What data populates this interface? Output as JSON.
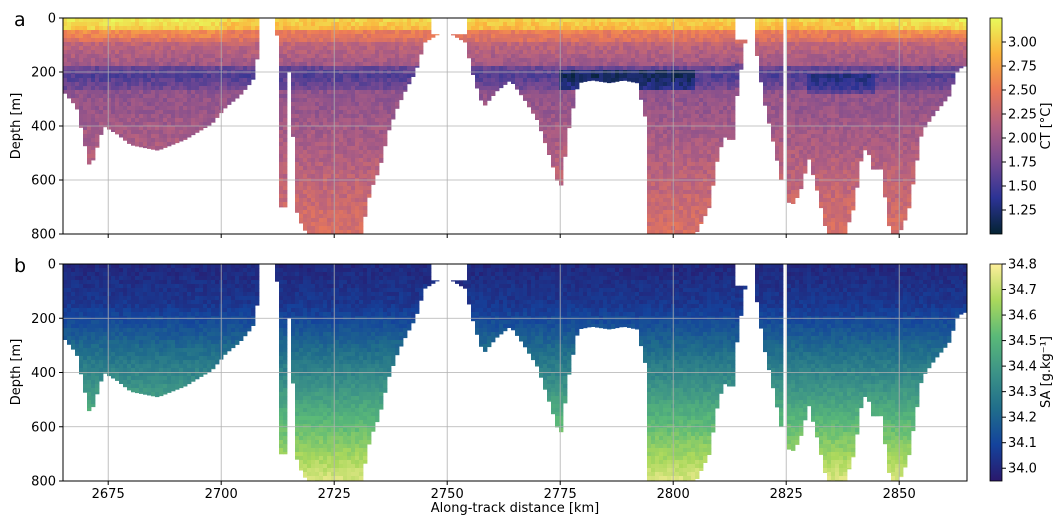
{
  "chart_data": [
    {
      "panel": "a",
      "type": "heatmap",
      "variable": "CT",
      "xlabel": "",
      "ylabel": "Depth [m]",
      "colorbar_label": "CT [°C]",
      "xlim": [
        2665,
        2865
      ],
      "ylim": [
        800,
        0
      ],
      "x_ticks": [
        2675,
        2700,
        2725,
        2750,
        2775,
        2800,
        2825,
        2850
      ],
      "y_ticks": [
        0,
        200,
        400,
        600,
        800
      ],
      "colorbar_ticks": [
        "1.25",
        "1.50",
        "1.75",
        "2.00",
        "2.25",
        "2.50",
        "2.75",
        "3.00"
      ],
      "color_range": [
        1.0,
        3.25
      ],
      "colormap": "thermal",
      "grid": true
    },
    {
      "panel": "b",
      "type": "heatmap",
      "variable": "SA",
      "xlabel": "Along-track distance [km]",
      "ylabel": "Depth [m]",
      "colorbar_label": "SA [g.kg⁻¹]",
      "xlim": [
        2665,
        2865
      ],
      "ylim": [
        800,
        0
      ],
      "x_ticks": [
        2675,
        2700,
        2725,
        2750,
        2775,
        2800,
        2825,
        2850
      ],
      "y_ticks": [
        0,
        200,
        400,
        600,
        800
      ],
      "colorbar_ticks": [
        "34.0",
        "34.1",
        "34.2",
        "34.3",
        "34.4",
        "34.5",
        "34.6",
        "34.7",
        "34.8"
      ],
      "color_range": [
        33.95,
        34.8
      ],
      "colormap": "haline",
      "grid": true
    }
  ],
  "profile_depth_m": [
    [
      2665,
      270
    ],
    [
      2668,
      330
    ],
    [
      2671,
      560
    ],
    [
      2674,
      400
    ],
    [
      2677,
      430
    ],
    [
      2680,
      470
    ],
    [
      2683,
      480
    ],
    [
      2686,
      490
    ],
    [
      2689,
      470
    ],
    [
      2692,
      450
    ],
    [
      2695,
      420
    ],
    [
      2698,
      390
    ],
    [
      2701,
      330
    ],
    [
      2704,
      290
    ],
    [
      2707,
      230
    ],
    [
      2709,
      60
    ],
    [
      2711,
      10
    ],
    [
      2713,
      90
    ],
    [
      2715,
      200
    ],
    [
      2717,
      740
    ],
    [
      2719,
      800
    ],
    [
      2722,
      800
    ],
    [
      2725,
      800
    ],
    [
      2728,
      800
    ],
    [
      2731,
      800
    ],
    [
      2733,
      640
    ],
    [
      2735,
      560
    ],
    [
      2737,
      420
    ],
    [
      2739,
      330
    ],
    [
      2741,
      260
    ],
    [
      2743,
      200
    ],
    [
      2745,
      90
    ],
    [
      2748,
      60
    ],
    [
      2751,
      60
    ],
    [
      2754,
      90
    ],
    [
      2756,
      230
    ],
    [
      2758,
      330
    ],
    [
      2761,
      270
    ],
    [
      2764,
      230
    ],
    [
      2767,
      300
    ],
    [
      2770,
      380
    ],
    [
      2773,
      530
    ],
    [
      2775,
      640
    ],
    [
      2777,
      400
    ],
    [
      2779,
      240
    ],
    [
      2782,
      230
    ],
    [
      2786,
      240
    ],
    [
      2789,
      230
    ],
    [
      2792,
      240
    ],
    [
      2794,
      380
    ],
    [
      2796,
      800
    ],
    [
      2799,
      800
    ],
    [
      2802,
      800
    ],
    [
      2805,
      800
    ],
    [
      2808,
      700
    ],
    [
      2810,
      500
    ],
    [
      2812,
      420
    ],
    [
      2814,
      300
    ],
    [
      2816,
      80
    ],
    [
      2818,
      80
    ],
    [
      2820,
      300
    ],
    [
      2822,
      450
    ],
    [
      2824,
      610
    ],
    [
      2826,
      700
    ],
    [
      2828,
      650
    ],
    [
      2830,
      520
    ],
    [
      2832,
      650
    ],
    [
      2834,
      800
    ],
    [
      2836,
      800
    ],
    [
      2838,
      800
    ],
    [
      2840,
      700
    ],
    [
      2842,
      480
    ],
    [
      2844,
      520
    ],
    [
      2846,
      560
    ],
    [
      2848,
      800
    ],
    [
      2850,
      800
    ],
    [
      2852,
      720
    ],
    [
      2855,
      420
    ],
    [
      2858,
      350
    ],
    [
      2861,
      290
    ],
    [
      2863,
      190
    ],
    [
      2865,
      175
    ]
  ],
  "surface_gaps_km": [
    [
      2708.5,
      2711.5,
      100
    ],
    [
      2746.5,
      2754.5,
      60
    ],
    [
      2814.0,
      2818.0,
      80
    ],
    [
      2824.5,
      2825.5,
      800
    ]
  ],
  "deep_columns_km": [
    [
      2713.5,
      2714.2,
      700
    ],
    [
      2716.5,
      2717.2,
      720
    ],
    [
      2720.0,
      2720.6,
      800
    ],
    [
      2730.0,
      2730.6,
      800
    ],
    [
      2794.5,
      2795.2,
      800
    ],
    [
      2798.0,
      2798.6,
      800
    ],
    [
      2801.5,
      2802.1,
      720
    ],
    [
      2812.5,
      2813.1,
      450
    ],
    [
      2835.5,
      2836.1,
      800
    ],
    [
      2844.0,
      2844.6,
      560
    ]
  ],
  "colors": {
    "thermal": [
      "#042333",
      "#2c3395",
      "#744992",
      "#b15f82",
      "#eb7958",
      "#fbb43d",
      "#e8fa5b"
    ],
    "haline": [
      "#2a186c",
      "#14439c",
      "#206e8b",
      "#3c9387",
      "#5ab978",
      "#aad85c",
      "#fdef9a"
    ],
    "grid": "#b0b0b0",
    "axes": "#000000"
  }
}
